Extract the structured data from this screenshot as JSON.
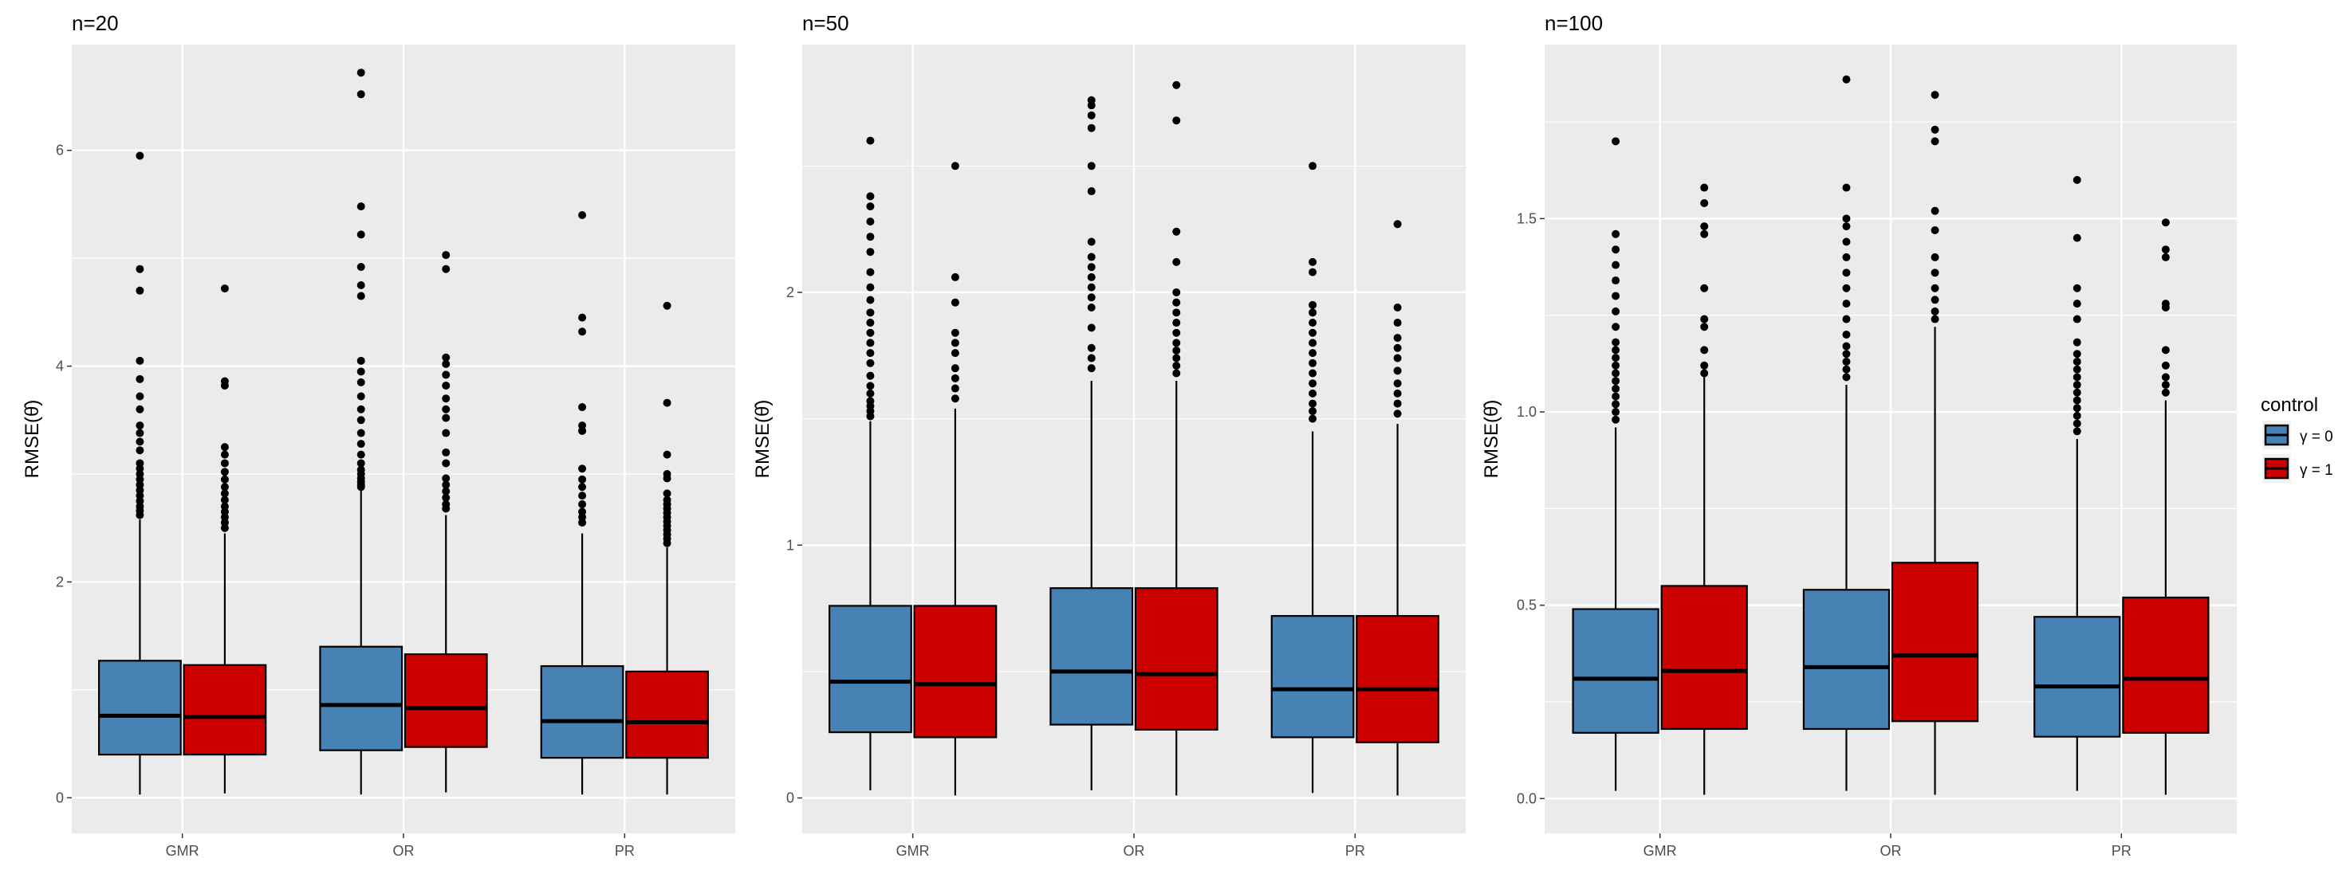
{
  "colors": {
    "gamma0": "#4682B4",
    "gamma1": "#CD0000",
    "panel_bg": "#EBEBEB",
    "grid": "#FFFFFF"
  },
  "legend": {
    "title": "control",
    "entries": [
      {
        "label": "γ = 0",
        "color": "#4682B4"
      },
      {
        "label": "γ = 1",
        "color": "#CD0000"
      }
    ]
  },
  "chart_data": [
    {
      "type": "box",
      "title": "n=20",
      "ylabel": "RMSE(θ̂)",
      "xlabel": "",
      "categories": [
        "GMR",
        "OR",
        "PR"
      ],
      "ylim": [
        -0.33,
        6.98
      ],
      "yticks": [
        0,
        2,
        4,
        6
      ],
      "series": [
        {
          "name": "γ = 0",
          "boxes": [
            {
              "lo": 0.03,
              "q1": 0.4,
              "med": 0.76,
              "q3": 1.27,
              "hi": 2.58,
              "out": [
                2.62,
                2.66,
                2.7,
                2.75,
                2.8,
                2.85,
                2.9,
                2.95,
                3.0,
                3.05,
                3.1,
                3.22,
                3.3,
                3.38,
                3.45,
                3.6,
                3.72,
                3.88,
                4.05,
                4.7,
                4.9,
                5.95
              ]
            },
            {
              "lo": 0.03,
              "q1": 0.44,
              "med": 0.86,
              "q3": 1.4,
              "hi": 2.85,
              "out": [
                2.88,
                2.9,
                2.93,
                2.96,
                3.0,
                3.04,
                3.1,
                3.18,
                3.28,
                3.38,
                3.5,
                3.6,
                3.72,
                3.85,
                3.95,
                4.05,
                4.65,
                4.75,
                4.92,
                5.22,
                5.48,
                6.52,
                6.72
              ]
            },
            {
              "lo": 0.03,
              "q1": 0.37,
              "med": 0.71,
              "q3": 1.22,
              "hi": 2.45,
              "out": [
                2.55,
                2.6,
                2.65,
                2.72,
                2.8,
                2.88,
                2.95,
                3.05,
                3.4,
                3.45,
                3.62,
                4.32,
                4.45,
                5.4
              ]
            }
          ]
        },
        {
          "name": "γ = 1",
          "boxes": [
            {
              "lo": 0.04,
              "q1": 0.4,
              "med": 0.75,
              "q3": 1.23,
              "hi": 2.45,
              "out": [
                2.5,
                2.55,
                2.6,
                2.65,
                2.7,
                2.76,
                2.82,
                2.88,
                2.95,
                3.02,
                3.1,
                3.18,
                3.25,
                3.82,
                3.86,
                4.72
              ]
            },
            {
              "lo": 0.05,
              "q1": 0.47,
              "med": 0.83,
              "q3": 1.33,
              "hi": 2.62,
              "out": [
                2.68,
                2.72,
                2.78,
                2.84,
                2.9,
                2.96,
                3.1,
                3.2,
                3.38,
                3.52,
                3.6,
                3.7,
                3.82,
                3.92,
                4.02,
                4.08,
                4.9,
                5.03
              ]
            },
            {
              "lo": 0.03,
              "q1": 0.37,
              "med": 0.7,
              "q3": 1.17,
              "hi": 2.32,
              "out": [
                2.36,
                2.4,
                2.44,
                2.48,
                2.52,
                2.56,
                2.6,
                2.64,
                2.68,
                2.72,
                2.76,
                2.82,
                2.96,
                3.0,
                3.18,
                3.66,
                4.56
              ]
            }
          ]
        }
      ]
    },
    {
      "type": "box",
      "title": "n=50",
      "ylabel": "RMSE(θ̂)",
      "xlabel": "",
      "categories": [
        "GMR",
        "OR",
        "PR"
      ],
      "ylim": [
        -0.14,
        2.98
      ],
      "yticks": [
        0,
        1,
        2
      ],
      "series": [
        {
          "name": "γ = 0",
          "boxes": [
            {
              "lo": 0.03,
              "q1": 0.26,
              "med": 0.46,
              "q3": 0.76,
              "hi": 1.49,
              "out": [
                1.51,
                1.53,
                1.55,
                1.57,
                1.6,
                1.63,
                1.67,
                1.72,
                1.76,
                1.8,
                1.84,
                1.88,
                1.92,
                1.97,
                2.02,
                2.08,
                2.16,
                2.22,
                2.28,
                2.34,
                2.38,
                2.6
              ]
            },
            {
              "lo": 0.03,
              "q1": 0.29,
              "med": 0.5,
              "q3": 0.83,
              "hi": 1.65,
              "out": [
                1.7,
                1.74,
                1.78,
                1.86,
                1.94,
                1.98,
                2.02,
                2.06,
                2.1,
                2.14,
                2.2,
                2.4,
                2.5,
                2.65,
                2.7,
                2.74,
                2.76
              ]
            },
            {
              "lo": 0.02,
              "q1": 0.24,
              "med": 0.43,
              "q3": 0.72,
              "hi": 1.45,
              "out": [
                1.5,
                1.53,
                1.56,
                1.6,
                1.64,
                1.68,
                1.72,
                1.76,
                1.8,
                1.84,
                1.88,
                1.92,
                1.95,
                2.08,
                2.12,
                2.5
              ]
            }
          ]
        },
        {
          "name": "γ = 1",
          "boxes": [
            {
              "lo": 0.01,
              "q1": 0.24,
              "med": 0.45,
              "q3": 0.76,
              "hi": 1.54,
              "out": [
                1.58,
                1.62,
                1.66,
                1.7,
                1.76,
                1.8,
                1.84,
                1.96,
                2.06,
                2.5
              ]
            },
            {
              "lo": 0.01,
              "q1": 0.27,
              "med": 0.49,
              "q3": 0.83,
              "hi": 1.65,
              "out": [
                1.68,
                1.71,
                1.74,
                1.77,
                1.8,
                1.84,
                1.88,
                1.92,
                1.96,
                2.0,
                2.12,
                2.24,
                2.68,
                2.82
              ]
            },
            {
              "lo": 0.01,
              "q1": 0.22,
              "med": 0.43,
              "q3": 0.72,
              "hi": 1.48,
              "out": [
                1.52,
                1.56,
                1.6,
                1.64,
                1.69,
                1.74,
                1.78,
                1.82,
                1.88,
                1.94,
                2.27
              ]
            }
          ]
        }
      ]
    },
    {
      "type": "box",
      "title": "n=100",
      "ylabel": "RMSE(θ̂)",
      "xlabel": "",
      "categories": [
        "GMR",
        "OR",
        "PR"
      ],
      "ylim": [
        -0.09,
        1.95
      ],
      "yticks": [
        0.0,
        0.5,
        1.0,
        1.5
      ],
      "series": [
        {
          "name": "γ = 0",
          "boxes": [
            {
              "lo": 0.02,
              "q1": 0.17,
              "med": 0.31,
              "q3": 0.49,
              "hi": 0.96,
              "out": [
                0.98,
                1.0,
                1.02,
                1.04,
                1.06,
                1.08,
                1.1,
                1.12,
                1.14,
                1.16,
                1.18,
                1.22,
                1.26,
                1.3,
                1.34,
                1.38,
                1.42,
                1.46,
                1.7
              ]
            },
            {
              "lo": 0.02,
              "q1": 0.18,
              "med": 0.34,
              "q3": 0.54,
              "hi": 1.07,
              "out": [
                1.09,
                1.11,
                1.13,
                1.15,
                1.17,
                1.2,
                1.24,
                1.28,
                1.32,
                1.36,
                1.4,
                1.44,
                1.48,
                1.5,
                1.58,
                1.86
              ]
            },
            {
              "lo": 0.02,
              "q1": 0.16,
              "med": 0.29,
              "q3": 0.47,
              "hi": 0.93,
              "out": [
                0.95,
                0.97,
                0.99,
                1.01,
                1.03,
                1.05,
                1.07,
                1.09,
                1.11,
                1.13,
                1.15,
                1.18,
                1.24,
                1.28,
                1.32,
                1.45,
                1.6
              ]
            }
          ]
        },
        {
          "name": "γ = 1",
          "boxes": [
            {
              "lo": 0.01,
              "q1": 0.18,
              "med": 0.33,
              "q3": 0.55,
              "hi": 1.09,
              "out": [
                1.1,
                1.12,
                1.16,
                1.22,
                1.24,
                1.32,
                1.46,
                1.48,
                1.54,
                1.58
              ]
            },
            {
              "lo": 0.01,
              "q1": 0.2,
              "med": 0.37,
              "q3": 0.61,
              "hi": 1.22,
              "out": [
                1.24,
                1.26,
                1.29,
                1.32,
                1.36,
                1.4,
                1.47,
                1.52,
                1.7,
                1.73,
                1.82
              ]
            },
            {
              "lo": 0.01,
              "q1": 0.17,
              "med": 0.31,
              "q3": 0.52,
              "hi": 1.03,
              "out": [
                1.05,
                1.07,
                1.09,
                1.12,
                1.16,
                1.27,
                1.28,
                1.4,
                1.42,
                1.49
              ]
            }
          ]
        }
      ]
    }
  ]
}
